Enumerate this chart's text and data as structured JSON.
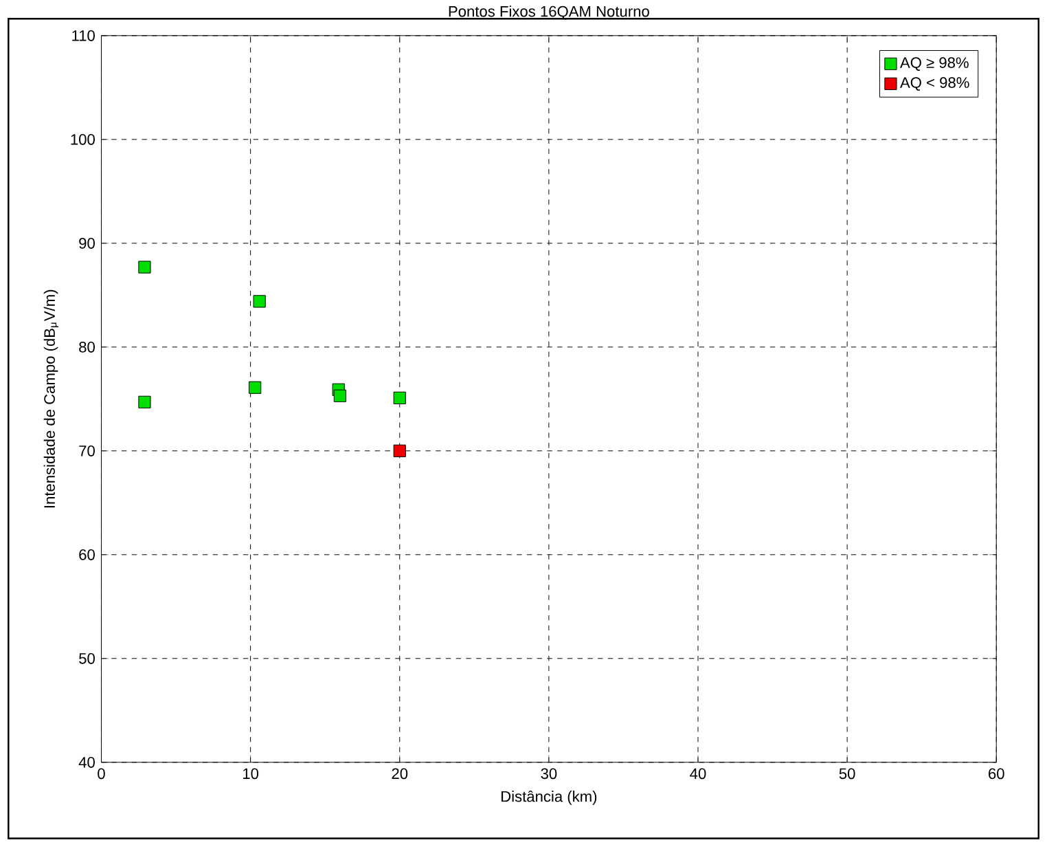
{
  "chart_data": {
    "type": "scatter",
    "title": "Pontos Fixos 16QAM Noturno",
    "xlabel": "Distância (km)",
    "ylabel": "Intensidade de Campo (dB$_{μ}$V/m)",
    "series": [
      {
        "name": "AQ ≥ 98%",
        "color": "#00dd00",
        "x": [
          2.9,
          2.9,
          10.6,
          10.3,
          15.9,
          16.0,
          20.0
        ],
        "values": [
          87.7,
          74.7,
          84.4,
          76.1,
          75.9,
          75.3,
          75.1
        ]
      },
      {
        "name": "AQ < 98%",
        "color": "#ee0000",
        "x": [
          20.0
        ],
        "values": [
          70.0
        ]
      }
    ],
    "xlim": [
      0,
      60
    ],
    "xticks": [
      0,
      10,
      20,
      30,
      40,
      50,
      60
    ],
    "ylim": [
      40,
      110
    ],
    "yticks": [
      40,
      50,
      60,
      70,
      80,
      90,
      100,
      110
    ],
    "grid": true,
    "legend": "top right",
    "marker": "square"
  }
}
